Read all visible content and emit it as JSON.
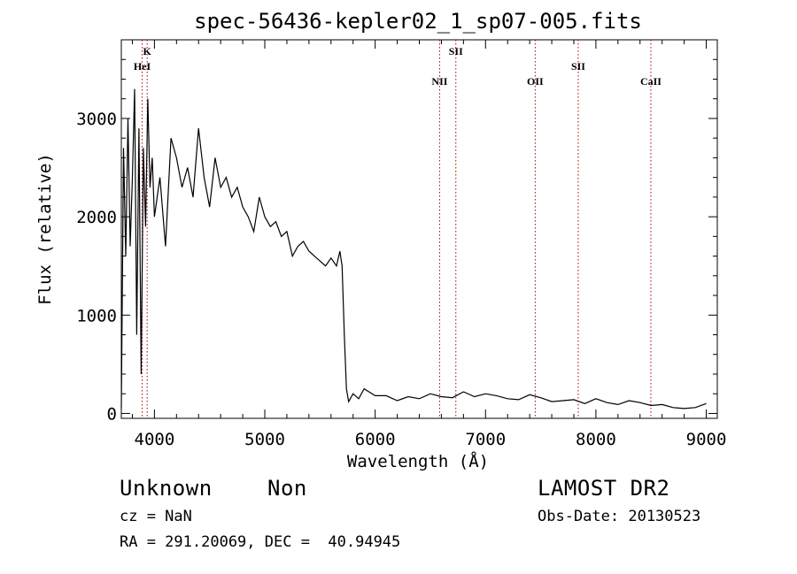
{
  "chart_data": {
    "type": "line",
    "title": "spec-56436-kepler02_1_sp07-005.fits",
    "xlabel": "Wavelength (Å)",
    "ylabel": "Flux (relative)",
    "xlim": [
      3700,
      9100
    ],
    "ylim": [
      -50,
      3800
    ],
    "xticks": [
      4000,
      5000,
      6000,
      7000,
      8000,
      9000
    ],
    "yticks": [
      0,
      1000,
      2000,
      3000
    ],
    "grid": false,
    "series": [
      {
        "name": "",
        "color": "#000000",
        "x": [
          3700,
          3720,
          3740,
          3760,
          3780,
          3800,
          3820,
          3840,
          3860,
          3880,
          3900,
          3920,
          3940,
          3960,
          3980,
          4000,
          4050,
          4100,
          4150,
          4200,
          4250,
          4300,
          4350,
          4400,
          4450,
          4500,
          4550,
          4600,
          4650,
          4700,
          4750,
          4800,
          4850,
          4900,
          4950,
          5000,
          5050,
          5100,
          5150,
          5200,
          5250,
          5300,
          5350,
          5400,
          5450,
          5500,
          5550,
          5600,
          5650,
          5680,
          5700,
          5720,
          5740,
          5760,
          5800,
          5850,
          5900,
          6000,
          6100,
          6200,
          6300,
          6400,
          6500,
          6600,
          6700,
          6800,
          6900,
          7000,
          7100,
          7200,
          7300,
          7400,
          7500,
          7600,
          7700,
          7800,
          7900,
          8000,
          8100,
          8200,
          8300,
          8400,
          8500,
          8600,
          8700,
          8800,
          8900,
          9000
        ],
        "y": [
          50,
          2700,
          1600,
          3000,
          1700,
          2400,
          3300,
          800,
          2900,
          400,
          2700,
          1900,
          3200,
          2300,
          2600,
          2000,
          2400,
          1700,
          2800,
          2600,
          2300,
          2500,
          2200,
          2900,
          2400,
          2100,
          2600,
          2300,
          2400,
          2200,
          2300,
          2100,
          2000,
          1850,
          2200,
          2000,
          1900,
          1950,
          1800,
          1850,
          1600,
          1700,
          1750,
          1650,
          1600,
          1550,
          1500,
          1580,
          1500,
          1650,
          1500,
          800,
          250,
          120,
          200,
          150,
          250,
          180,
          180,
          130,
          170,
          150,
          200,
          170,
          160,
          220,
          170,
          200,
          180,
          150,
          140,
          190,
          160,
          120,
          130,
          140,
          100,
          150,
          110,
          90,
          130,
          110,
          80,
          90,
          60,
          50,
          60,
          100
        ]
      }
    ],
    "annotations": [
      {
        "label": "K",
        "x": 3934
      },
      {
        "label": "HeI",
        "x": 3889
      },
      {
        "label": "NII",
        "x": 6584
      },
      {
        "label": "SII",
        "x": 6731
      },
      {
        "label": "OII",
        "x": 7450
      },
      {
        "label": "SII",
        "x": 7840
      },
      {
        "label": "CaII",
        "x": 8498
      }
    ]
  },
  "info": {
    "object_class": "Unknown",
    "object_subclass": "Non",
    "cz": "cz = NaN",
    "coords": "RA = 291.20069, DEC =  40.94945",
    "survey": "LAMOST DR2",
    "obs_date": "Obs-Date: 20130523"
  }
}
